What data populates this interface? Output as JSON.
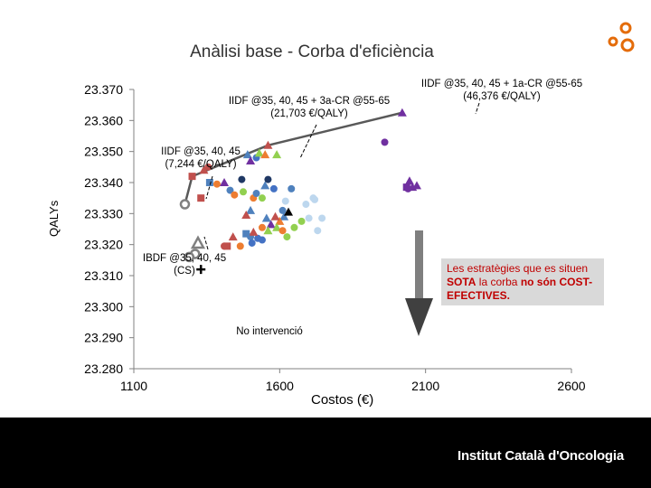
{
  "slide": {
    "footer": "Institut Català d'Oncologia",
    "callout": {
      "line1": "Les estratègies que es situen",
      "bold1": "SOTA",
      "line2": " la corba ",
      "bold2": "no són COST-EFECTIVES."
    }
  },
  "chart_data": {
    "type": "scatter",
    "title": "Anàlisi base - Corba d'eficiència",
    "xlabel": "Costos (€)",
    "ylabel": "QALYs",
    "xlim": [
      1100,
      2600
    ],
    "ylim": [
      23.28,
      23.37
    ],
    "x_ticks": [
      "1100",
      "1600",
      "2100",
      "2600"
    ],
    "y_ticks": [
      "23.370",
      "23.360",
      "23.350",
      "23.340",
      "23.330",
      "23.320",
      "23.310",
      "23.300",
      "23.290",
      "23.280"
    ],
    "grid": false,
    "efficiency_frontier": [
      {
        "x": 1275,
        "y": 23.333
      },
      {
        "x": 1300,
        "y": 23.342
      },
      {
        "x": 1560,
        "y": 23.352
      },
      {
        "x": 2020,
        "y": 23.3625
      }
    ],
    "annotations": [
      {
        "text": "IIDF @35, 40, 45 + 1a-CR @55-65",
        "text2": "(46,376 €/QALY)"
      },
      {
        "text": "IIDF @35, 40, 45 + 3a-CR @55-65",
        "text2": "(21,703 €/QALY)"
      },
      {
        "text": "IIDF @35, 40, 45",
        "text2": "(7,244 €/QALY)"
      },
      {
        "text": "IBDF @35, 40, 45",
        "text2": "(CS)"
      },
      {
        "text": "No intervenció",
        "text2": ""
      }
    ],
    "points": [
      {
        "x": 1275,
        "y": 23.333,
        "shape": "circle-open",
        "color": "#808080"
      },
      {
        "x": 1320,
        "y": 23.3205,
        "shape": "triangle-open",
        "color": "#808080"
      },
      {
        "x": 1310,
        "y": 23.317,
        "shape": "circle-open",
        "color": "#808080"
      },
      {
        "x": 1290,
        "y": 23.316,
        "shape": "circle-open",
        "color": "#808080"
      },
      {
        "x": 1330,
        "y": 23.312,
        "shape": "plus",
        "color": "#000000"
      },
      {
        "x": 1300,
        "y": 23.342,
        "shape": "square",
        "color": "#c0504d"
      },
      {
        "x": 1330,
        "y": 23.335,
        "shape": "square",
        "color": "#c0504d"
      },
      {
        "x": 1340,
        "y": 23.344,
        "shape": "triangle",
        "color": "#c0504d"
      },
      {
        "x": 1355,
        "y": 23.345,
        "shape": "circle",
        "color": "#c0504d"
      },
      {
        "x": 1360,
        "y": 23.34,
        "shape": "square",
        "color": "#4f81bd"
      },
      {
        "x": 1385,
        "y": 23.3395,
        "shape": "circle",
        "color": "#ed7d31"
      },
      {
        "x": 1410,
        "y": 23.34,
        "shape": "triangle",
        "color": "#7030a0"
      },
      {
        "x": 1430,
        "y": 23.3375,
        "shape": "circle",
        "color": "#4f81bd"
      },
      {
        "x": 1445,
        "y": 23.336,
        "shape": "circle",
        "color": "#ed7d31"
      },
      {
        "x": 1470,
        "y": 23.341,
        "shape": "circle",
        "color": "#1f3864"
      },
      {
        "x": 1475,
        "y": 23.337,
        "shape": "circle",
        "color": "#92d050"
      },
      {
        "x": 1490,
        "y": 23.349,
        "shape": "triangle",
        "color": "#4f81bd"
      },
      {
        "x": 1500,
        "y": 23.347,
        "shape": "triangle",
        "color": "#7030a0"
      },
      {
        "x": 1520,
        "y": 23.348,
        "shape": "circle",
        "color": "#4472c4"
      },
      {
        "x": 1530,
        "y": 23.3495,
        "shape": "triangle",
        "color": "#92d050"
      },
      {
        "x": 1550,
        "y": 23.349,
        "shape": "triangle",
        "color": "#ed7d31"
      },
      {
        "x": 1560,
        "y": 23.352,
        "shape": "triangle",
        "color": "#c0504d"
      },
      {
        "x": 1590,
        "y": 23.349,
        "shape": "triangle",
        "color": "#92d050"
      },
      {
        "x": 1510,
        "y": 23.335,
        "shape": "circle",
        "color": "#ed7d31"
      },
      {
        "x": 1520,
        "y": 23.3365,
        "shape": "circle",
        "color": "#4f81bd"
      },
      {
        "x": 1540,
        "y": 23.335,
        "shape": "circle",
        "color": "#92d050"
      },
      {
        "x": 1550,
        "y": 23.339,
        "shape": "triangle",
        "color": "#4f81bd"
      },
      {
        "x": 1560,
        "y": 23.341,
        "shape": "circle",
        "color": "#1f3864"
      },
      {
        "x": 1580,
        "y": 23.338,
        "shape": "circle",
        "color": "#4472c4"
      },
      {
        "x": 1610,
        "y": 23.331,
        "shape": "circle",
        "color": "#4f81bd"
      },
      {
        "x": 1620,
        "y": 23.334,
        "shape": "circle",
        "color": "#bdd7ee"
      },
      {
        "x": 1640,
        "y": 23.338,
        "shape": "circle",
        "color": "#4f81bd"
      },
      {
        "x": 1690,
        "y": 23.333,
        "shape": "circle",
        "color": "#bdd7ee"
      },
      {
        "x": 1715,
        "y": 23.335,
        "shape": "circle",
        "color": "#bdd7ee"
      },
      {
        "x": 1720,
        "y": 23.3345,
        "shape": "circle",
        "color": "#bdd7ee"
      },
      {
        "x": 1700,
        "y": 23.3285,
        "shape": "circle",
        "color": "#bdd7ee"
      },
      {
        "x": 1745,
        "y": 23.3285,
        "shape": "circle",
        "color": "#bdd7ee"
      },
      {
        "x": 1730,
        "y": 23.3245,
        "shape": "circle",
        "color": "#bdd7ee"
      },
      {
        "x": 1675,
        "y": 23.3275,
        "shape": "circle",
        "color": "#92d050"
      },
      {
        "x": 1650,
        "y": 23.3255,
        "shape": "circle",
        "color": "#92d050"
      },
      {
        "x": 1615,
        "y": 23.329,
        "shape": "triangle",
        "color": "#4f81bd"
      },
      {
        "x": 1630,
        "y": 23.3305,
        "shape": "triangle",
        "color": "#000000"
      },
      {
        "x": 1600,
        "y": 23.3275,
        "shape": "triangle",
        "color": "#ed7d31"
      },
      {
        "x": 1585,
        "y": 23.329,
        "shape": "triangle",
        "color": "#c0504d"
      },
      {
        "x": 1570,
        "y": 23.3265,
        "shape": "triangle",
        "color": "#7030a0"
      },
      {
        "x": 1555,
        "y": 23.3285,
        "shape": "triangle",
        "color": "#4f81bd"
      },
      {
        "x": 1540,
        "y": 23.3255,
        "shape": "circle",
        "color": "#ed7d31"
      },
      {
        "x": 1560,
        "y": 23.3245,
        "shape": "triangle",
        "color": "#92d050"
      },
      {
        "x": 1590,
        "y": 23.3255,
        "shape": "triangle",
        "color": "#92d050"
      },
      {
        "x": 1610,
        "y": 23.3245,
        "shape": "circle",
        "color": "#ed7d31"
      },
      {
        "x": 1625,
        "y": 23.3225,
        "shape": "circle",
        "color": "#92d050"
      },
      {
        "x": 1500,
        "y": 23.3225,
        "shape": "circle",
        "color": "#4f81bd"
      },
      {
        "x": 1505,
        "y": 23.3205,
        "shape": "circle",
        "color": "#4472c4"
      },
      {
        "x": 1525,
        "y": 23.322,
        "shape": "circle",
        "color": "#4472c4"
      },
      {
        "x": 1540,
        "y": 23.3215,
        "shape": "circle",
        "color": "#4472c4"
      },
      {
        "x": 1510,
        "y": 23.324,
        "shape": "triangle",
        "color": "#c0504d"
      },
      {
        "x": 1485,
        "y": 23.3235,
        "shape": "square",
        "color": "#4f81bd"
      },
      {
        "x": 1465,
        "y": 23.3195,
        "shape": "circle",
        "color": "#ed7d31"
      },
      {
        "x": 1440,
        "y": 23.3225,
        "shape": "triangle",
        "color": "#c0504d"
      },
      {
        "x": 1420,
        "y": 23.3195,
        "shape": "square",
        "color": "#c0504d"
      },
      {
        "x": 1410,
        "y": 23.3195,
        "shape": "circle",
        "color": "#c0504d"
      },
      {
        "x": 1500,
        "y": 23.331,
        "shape": "triangle",
        "color": "#4f81bd"
      },
      {
        "x": 1485,
        "y": 23.3295,
        "shape": "triangle",
        "color": "#c0504d"
      },
      {
        "x": 1960,
        "y": 23.353,
        "shape": "circle",
        "color": "#7030a0"
      },
      {
        "x": 2020,
        "y": 23.3625,
        "shape": "triangle",
        "color": "#7030a0"
      },
      {
        "x": 2045,
        "y": 23.3405,
        "shape": "triangle",
        "color": "#7030a0"
      },
      {
        "x": 2035,
        "y": 23.3385,
        "shape": "square",
        "color": "#7030a0"
      },
      {
        "x": 2055,
        "y": 23.3385,
        "shape": "triangle",
        "color": "#7030a0"
      },
      {
        "x": 2070,
        "y": 23.339,
        "shape": "triangle",
        "color": "#7030a0"
      },
      {
        "x": 2040,
        "y": 23.338,
        "shape": "circle",
        "color": "#7030a0"
      }
    ]
  }
}
